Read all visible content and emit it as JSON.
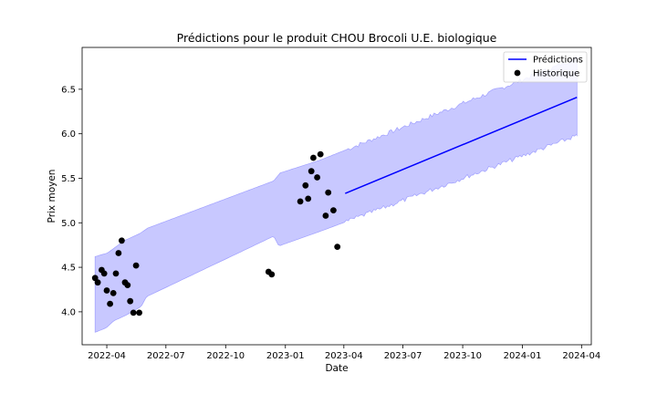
{
  "chart_data": {
    "type": "line",
    "title": "Prédictions pour le produit CHOU Brocoli U.E. biologique",
    "xlabel": "Date",
    "ylabel": "Prix moyen",
    "xlim": [
      "2022-02-22",
      "2024-04-16"
    ],
    "ylim": [
      3.63,
      6.97
    ],
    "x_ticks": [
      "2022-04",
      "2022-07",
      "2022-10",
      "2023-01",
      "2023-04",
      "2023-07",
      "2023-10",
      "2024-01",
      "2024-04"
    ],
    "y_ticks": [
      "4.0",
      "4.5",
      "5.0",
      "5.5",
      "6.0",
      "6.5"
    ],
    "grid": false,
    "legend_position": "top-right",
    "colors": {
      "prediction": "#0000ff",
      "band": "#c8c8ff",
      "band_edge": "#a0a0ff",
      "history": "#000000"
    },
    "legend": [
      {
        "label": "Prédictions",
        "marker": "line"
      },
      {
        "label": "Historique",
        "marker": "dot"
      }
    ],
    "series": [
      {
        "name": "Prédictions",
        "kind": "line",
        "points": [
          {
            "x": "2023-04-03",
            "y": 5.33
          },
          {
            "x": "2024-03-25",
            "y": 6.41
          }
        ]
      },
      {
        "name": "Historique",
        "kind": "scatter",
        "points": [
          {
            "x": "2022-03-14",
            "y": 4.38
          },
          {
            "x": "2022-03-18",
            "y": 4.33
          },
          {
            "x": "2022-03-24",
            "y": 4.47
          },
          {
            "x": "2022-03-28",
            "y": 4.43
          },
          {
            "x": "2022-04-01",
            "y": 4.24
          },
          {
            "x": "2022-04-06",
            "y": 4.09
          },
          {
            "x": "2022-04-11",
            "y": 4.21
          },
          {
            "x": "2022-04-15",
            "y": 4.43
          },
          {
            "x": "2022-04-19",
            "y": 4.66
          },
          {
            "x": "2022-04-24",
            "y": 4.8
          },
          {
            "x": "2022-04-29",
            "y": 4.33
          },
          {
            "x": "2022-05-03",
            "y": 4.3
          },
          {
            "x": "2022-05-07",
            "y": 4.12
          },
          {
            "x": "2022-05-12",
            "y": 3.99
          },
          {
            "x": "2022-05-16",
            "y": 4.52
          },
          {
            "x": "2022-05-21",
            "y": 3.99
          },
          {
            "x": "2022-12-06",
            "y": 4.45
          },
          {
            "x": "2022-12-11",
            "y": 4.42
          },
          {
            "x": "2023-01-24",
            "y": 5.24
          },
          {
            "x": "2023-02-01",
            "y": 5.42
          },
          {
            "x": "2023-02-05",
            "y": 5.27
          },
          {
            "x": "2023-02-10",
            "y": 5.58
          },
          {
            "x": "2023-02-13",
            "y": 5.73
          },
          {
            "x": "2023-02-19",
            "y": 5.51
          },
          {
            "x": "2023-02-24",
            "y": 5.77
          },
          {
            "x": "2023-03-04",
            "y": 5.08
          },
          {
            "x": "2023-03-08",
            "y": 5.34
          },
          {
            "x": "2023-03-16",
            "y": 5.14
          },
          {
            "x": "2023-03-22",
            "y": 4.73
          }
        ]
      }
    ],
    "confidence_band": {
      "lower": [
        {
          "x": "2022-03-14",
          "y": 3.77
        },
        {
          "x": "2022-03-31",
          "y": 3.82
        },
        {
          "x": "2022-04-12",
          "y": 3.9
        },
        {
          "x": "2022-04-30",
          "y": 3.96
        },
        {
          "x": "2022-05-24",
          "y": 4.06
        },
        {
          "x": "2022-06-01",
          "y": 4.17
        },
        {
          "x": "2022-12-14",
          "y": 4.85
        },
        {
          "x": "2022-12-22",
          "y": 4.74
        },
        {
          "x": "2023-02-22",
          "y": 4.9
        },
        {
          "x": "2024-03-25",
          "y": 5.98
        }
      ],
      "upper": [
        {
          "x": "2022-03-14",
          "y": 4.62
        },
        {
          "x": "2022-04-02",
          "y": 4.66
        },
        {
          "x": "2022-04-28",
          "y": 4.8
        },
        {
          "x": "2022-05-22",
          "y": 4.88
        },
        {
          "x": "2022-06-03",
          "y": 4.94
        },
        {
          "x": "2022-12-14",
          "y": 5.47
        },
        {
          "x": "2022-12-24",
          "y": 5.56
        },
        {
          "x": "2023-02-22",
          "y": 5.7
        },
        {
          "x": "2024-03-25",
          "y": 6.85
        }
      ]
    }
  }
}
